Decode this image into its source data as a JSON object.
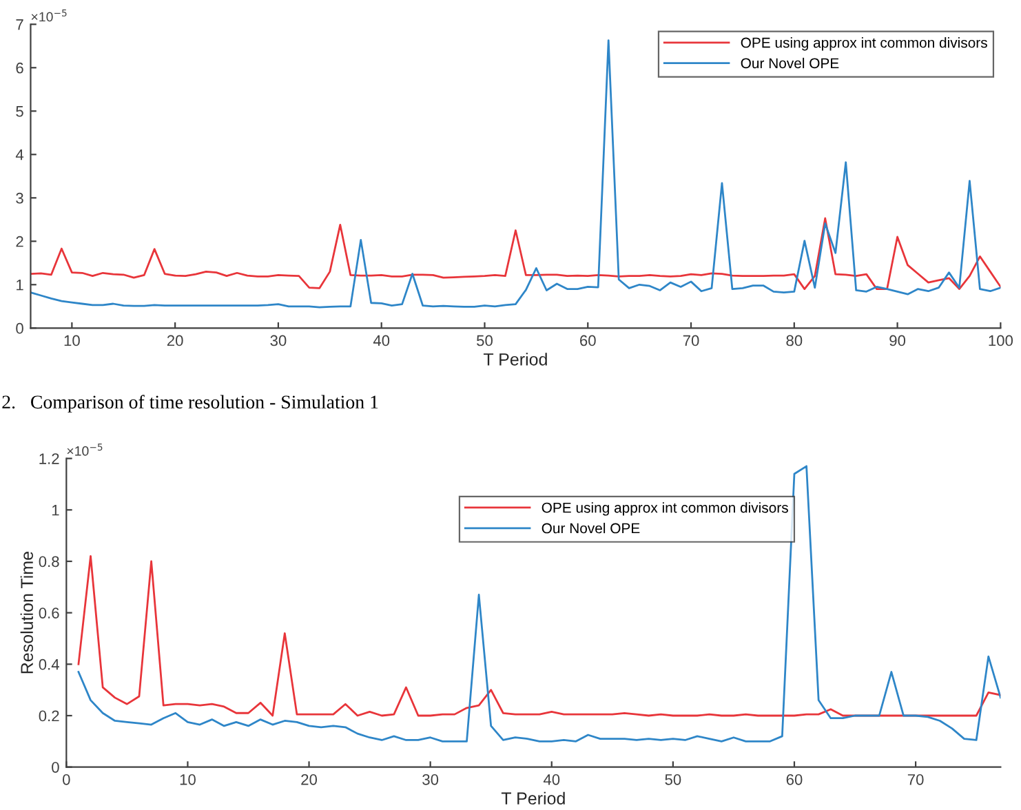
{
  "chart_data": [
    {
      "type": "line",
      "xlabel": "T Period",
      "annotations": [
        "×10$^{−5}$",
        "2.   Comparison of time resolution - Simulation 1"
      ],
      "x": [
        6,
        7,
        8,
        9,
        10,
        11,
        12,
        13,
        14,
        15,
        16,
        17,
        18,
        19,
        20,
        21,
        22,
        23,
        24,
        25,
        26,
        27,
        28,
        29,
        30,
        31,
        32,
        33,
        34,
        35,
        36,
        37,
        38,
        39,
        40,
        41,
        42,
        43,
        44,
        45,
        46,
        47,
        48,
        49,
        50,
        51,
        52,
        53,
        54,
        55,
        56,
        57,
        58,
        59,
        60,
        61,
        62,
        63,
        64,
        65,
        66,
        67,
        68,
        69,
        70,
        71,
        72,
        73,
        74,
        75,
        76,
        77,
        78,
        79,
        80,
        81,
        82,
        83,
        84,
        85,
        86,
        87,
        88,
        89,
        90,
        91,
        92,
        93,
        94,
        95,
        96,
        97,
        98,
        99,
        100
      ],
      "series": [
        {
          "name": "OPE using approx int common divisors",
          "color": "#e8353a",
          "values": [
            1.25,
            1.26,
            1.23,
            1.83,
            1.28,
            1.27,
            1.2,
            1.27,
            1.24,
            1.23,
            1.16,
            1.22,
            1.82,
            1.25,
            1.21,
            1.2,
            1.24,
            1.3,
            1.28,
            1.2,
            1.27,
            1.21,
            1.19,
            1.19,
            1.22,
            1.21,
            1.2,
            0.93,
            0.92,
            1.3,
            2.38,
            1.22,
            1.21,
            1.21,
            1.22,
            1.19,
            1.19,
            1.23,
            1.23,
            1.22,
            1.16,
            1.17,
            1.18,
            1.19,
            1.2,
            1.22,
            1.2,
            2.25,
            1.22,
            1.22,
            1.23,
            1.23,
            1.2,
            1.21,
            1.2,
            1.22,
            1.21,
            1.19,
            1.2,
            1.2,
            1.22,
            1.2,
            1.19,
            1.2,
            1.24,
            1.22,
            1.26,
            1.25,
            1.21,
            1.2,
            1.2,
            1.2,
            1.21,
            1.21,
            1.24,
            0.9,
            1.2,
            2.53,
            1.24,
            1.23,
            1.2,
            1.24,
            0.9,
            0.9,
            2.1,
            1.45,
            1.25,
            1.05,
            1.1,
            1.15,
            0.9,
            1.2,
            1.65,
            1.3,
            0.95
          ]
        },
        {
          "name": "Our Novel OPE",
          "color": "#2e86c8",
          "values": [
            0.82,
            0.75,
            0.68,
            0.62,
            0.59,
            0.56,
            0.53,
            0.53,
            0.56,
            0.52,
            0.51,
            0.51,
            0.53,
            0.52,
            0.52,
            0.52,
            0.52,
            0.52,
            0.52,
            0.52,
            0.52,
            0.52,
            0.52,
            0.53,
            0.55,
            0.5,
            0.5,
            0.5,
            0.48,
            0.49,
            0.5,
            0.5,
            2.03,
            0.58,
            0.57,
            0.52,
            0.55,
            1.25,
            0.52,
            0.5,
            0.51,
            0.5,
            0.49,
            0.49,
            0.52,
            0.5,
            0.53,
            0.55,
            0.88,
            1.38,
            0.87,
            1.02,
            0.9,
            0.9,
            0.95,
            0.94,
            6.63,
            1.12,
            0.92,
            1.0,
            0.97,
            0.87,
            1.05,
            0.95,
            1.07,
            0.85,
            0.92,
            3.34,
            0.9,
            0.92,
            0.98,
            0.98,
            0.84,
            0.82,
            0.84,
            2.01,
            0.93,
            2.41,
            1.73,
            3.82,
            0.87,
            0.84,
            0.95,
            0.9,
            0.84,
            0.78,
            0.9,
            0.85,
            0.93,
            1.28,
            0.93,
            3.39,
            0.9,
            0.85,
            0.93
          ]
        }
      ],
      "xlim": [
        6,
        100
      ],
      "xticks": [
        10,
        20,
        30,
        40,
        50,
        60,
        70,
        80,
        90,
        100
      ],
      "ylim": [
        0,
        7
      ],
      "yticks": [
        0,
        1,
        2,
        3,
        4,
        5,
        6,
        7
      ],
      "grid": false,
      "legend": "top right"
    },
    {
      "type": "line",
      "xlabel": "T Period",
      "ylabel": "Resolution Time",
      "annotations": [
        "×10$^{−5}$"
      ],
      "x": [
        1,
        2,
        3,
        4,
        5,
        6,
        7,
        8,
        9,
        10,
        11,
        12,
        13,
        14,
        15,
        16,
        17,
        18,
        19,
        20,
        21,
        22,
        23,
        24,
        25,
        26,
        27,
        28,
        29,
        30,
        31,
        32,
        33,
        34,
        35,
        36,
        37,
        38,
        39,
        40,
        41,
        42,
        43,
        44,
        45,
        46,
        47,
        48,
        49,
        50,
        51,
        52,
        53,
        54,
        55,
        56,
        57,
        58,
        59,
        60,
        61,
        62,
        63,
        64,
        65,
        66,
        67,
        68,
        69,
        70,
        71,
        72,
        73,
        74,
        75,
        76,
        77
      ],
      "series": [
        {
          "name": "OPE using approx int common divisors",
          "color": "#e8353a",
          "values": [
            0.4,
            0.82,
            0.31,
            0.27,
            0.245,
            0.275,
            0.8,
            0.24,
            0.245,
            0.245,
            0.24,
            0.245,
            0.235,
            0.21,
            0.21,
            0.25,
            0.2,
            0.52,
            0.205,
            0.205,
            0.205,
            0.205,
            0.245,
            0.2,
            0.215,
            0.2,
            0.205,
            0.31,
            0.2,
            0.2,
            0.205,
            0.205,
            0.23,
            0.24,
            0.3,
            0.21,
            0.205,
            0.205,
            0.205,
            0.215,
            0.205,
            0.205,
            0.205,
            0.205,
            0.205,
            0.21,
            0.205,
            0.2,
            0.205,
            0.2,
            0.2,
            0.2,
            0.205,
            0.2,
            0.2,
            0.205,
            0.2,
            0.2,
            0.2,
            0.2,
            0.205,
            0.205,
            0.225,
            0.2,
            0.2,
            0.2,
            0.2,
            0.2,
            0.2,
            0.2,
            0.2,
            0.2,
            0.2,
            0.2,
            0.2,
            0.29,
            0.28
          ]
        },
        {
          "name": "Our Novel OPE",
          "color": "#2e86c8",
          "values": [
            0.37,
            0.26,
            0.21,
            0.18,
            0.175,
            0.17,
            0.165,
            0.19,
            0.21,
            0.175,
            0.165,
            0.185,
            0.16,
            0.175,
            0.16,
            0.185,
            0.165,
            0.18,
            0.175,
            0.16,
            0.155,
            0.16,
            0.155,
            0.13,
            0.115,
            0.105,
            0.12,
            0.105,
            0.105,
            0.115,
            0.1,
            0.1,
            0.1,
            0.67,
            0.16,
            0.105,
            0.115,
            0.11,
            0.1,
            0.1,
            0.105,
            0.1,
            0.125,
            0.11,
            0.11,
            0.11,
            0.105,
            0.11,
            0.105,
            0.11,
            0.105,
            0.12,
            0.11,
            0.1,
            0.115,
            0.1,
            0.1,
            0.1,
            0.12,
            1.14,
            1.17,
            0.26,
            0.19,
            0.19,
            0.2,
            0.2,
            0.2,
            0.37,
            0.2,
            0.2,
            0.195,
            0.18,
            0.15,
            0.11,
            0.105,
            0.43,
            0.27
          ]
        }
      ],
      "xlim": [
        0,
        77
      ],
      "xticks": [
        0,
        10,
        20,
        30,
        40,
        50,
        60,
        70
      ],
      "ylim": [
        0,
        1.2
      ],
      "yticks": [
        0,
        0.2,
        0.4,
        0.6,
        0.8,
        1,
        1.2
      ],
      "grid": false,
      "legend": "top"
    }
  ]
}
